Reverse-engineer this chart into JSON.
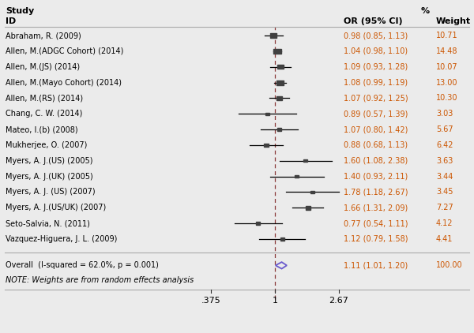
{
  "studies": [
    {
      "label": "Abraham, R. (2009)",
      "or": 0.98,
      "ci_lo": 0.85,
      "ci_hi": 1.13,
      "weight": 10.71
    },
    {
      "label": "Allen, M.(ADGC Cohort) (2014)",
      "or": 1.04,
      "ci_lo": 0.98,
      "ci_hi": 1.1,
      "weight": 14.48
    },
    {
      "label": "Allen, M.(JS) (2014)",
      "or": 1.09,
      "ci_lo": 0.93,
      "ci_hi": 1.28,
      "weight": 10.07
    },
    {
      "label": "Allen, M.(Mayo Cohort) (2014)",
      "or": 1.08,
      "ci_lo": 0.99,
      "ci_hi": 1.19,
      "weight": 13.0
    },
    {
      "label": "Allen, M.(RS) (2014)",
      "or": 1.07,
      "ci_lo": 0.92,
      "ci_hi": 1.25,
      "weight": 10.3
    },
    {
      "label": "Chang, C. W. (2014)",
      "or": 0.89,
      "ci_lo": 0.57,
      "ci_hi": 1.39,
      "weight": 3.03
    },
    {
      "label": "Mateo, I.(b) (2008)",
      "or": 1.07,
      "ci_lo": 0.8,
      "ci_hi": 1.42,
      "weight": 5.67
    },
    {
      "label": "Mukherjee, O. (2007)",
      "or": 0.88,
      "ci_lo": 0.68,
      "ci_hi": 1.13,
      "weight": 6.42
    },
    {
      "label": "Myers, A. J.(US) (2005)",
      "or": 1.6,
      "ci_lo": 1.08,
      "ci_hi": 2.38,
      "weight": 3.63
    },
    {
      "label": "Myers, A. J.(UK) (2005)",
      "or": 1.4,
      "ci_lo": 0.93,
      "ci_hi": 2.11,
      "weight": 3.44
    },
    {
      "label": "Myers, A. J. (US) (2007)",
      "or": 1.78,
      "ci_lo": 1.18,
      "ci_hi": 2.67,
      "weight": 3.45
    },
    {
      "label": "Myers, A. J.(US/UK) (2007)",
      "or": 1.66,
      "ci_lo": 1.31,
      "ci_hi": 2.09,
      "weight": 7.27
    },
    {
      "label": "Seto-Salvia, N. (2011)",
      "or": 0.77,
      "ci_lo": 0.54,
      "ci_hi": 1.11,
      "weight": 4.12
    },
    {
      "label": "Vazquez-Higuera, J. L. (2009)",
      "or": 1.12,
      "ci_lo": 0.79,
      "ci_hi": 1.58,
      "weight": 4.41
    }
  ],
  "overall": {
    "label": "Overall  (I-squared = 62.0%, p = 0.001)",
    "or": 1.11,
    "ci_lo": 1.01,
    "ci_hi": 1.2,
    "weight": 100.0
  },
  "note": "NOTE: Weights are from random effects analysis",
  "xmin": 0.375,
  "xmax": 2.67,
  "null_line": 1.0,
  "xticks": [
    0.375,
    1.0,
    2.67
  ],
  "xtick_labels": [
    ".375",
    "1",
    "2.67"
  ],
  "col_or_label": "OR (95% CI)",
  "col_weight_label": "Weight",
  "header1": "Study",
  "header2": "ID",
  "pct_label": "%",
  "bg_color": "#ebebeb",
  "dashed_line_color": "#8b3a3a",
  "square_color": "#404040",
  "diamond_color": "#6a5acd",
  "ci_line_color": "#000000",
  "text_color": "#000000",
  "or_text_color": "#cc5500",
  "sep_color": "#aaaaaa"
}
